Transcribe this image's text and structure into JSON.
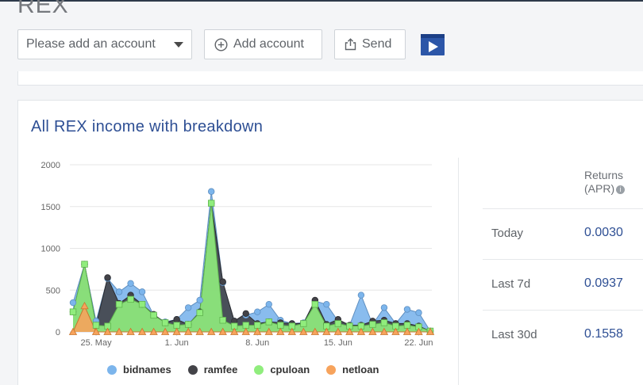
{
  "app": {
    "title": "REX"
  },
  "toolbar": {
    "account_placeholder": "Please add an account",
    "add_account_label": "Add account",
    "send_label": "Send"
  },
  "card": {
    "title": "All REX income with breakdown",
    "returns_header_line1": "Returns",
    "returns_header_line2": "(APR)",
    "returns": [
      {
        "label": "Today",
        "value": "0.0030"
      },
      {
        "label": "Last 7d",
        "value": "0.0937"
      },
      {
        "label": "Last 30d",
        "value": "0.1558"
      }
    ]
  },
  "colors": {
    "bidnames": "#7cb5ec",
    "ramfee": "#434348",
    "cpuloan": "#90ed7d",
    "netloan": "#f7a35c",
    "title": "#2e4f94"
  },
  "icons": {
    "add": "plus-circle-icon",
    "send": "share-upload-icon",
    "video": "play-video-icon",
    "info": "info-icon"
  },
  "chart_data": {
    "type": "area",
    "x": [
      "23. May",
      "24. May",
      "25. May",
      "26. May",
      "27. May",
      "28. May",
      "29. May",
      "30. May",
      "31. May",
      "1. Jun",
      "2. Jun",
      "3. Jun",
      "4. Jun",
      "5. Jun",
      "6. Jun",
      "7. Jun",
      "8. Jun",
      "9. Jun",
      "10. Jun",
      "11. Jun",
      "12. Jun",
      "13. Jun",
      "14. Jun",
      "15. Jun",
      "16. Jun",
      "17. Jun",
      "18. Jun",
      "19. Jun",
      "20. Jun",
      "21. Jun",
      "22. Jun",
      "23. Jun"
    ],
    "xticks": [
      "25. May",
      "1. Jun",
      "8. Jun",
      "15. Jun",
      "22. Jun"
    ],
    "yticks": [
      "0",
      "500",
      "1000",
      "1500",
      "2000"
    ],
    "ylim": [
      0,
      2000
    ],
    "stacked": false,
    "series": [
      {
        "name": "bidnames",
        "values": [
          350,
          810,
          130,
          640,
          480,
          580,
          480,
          200,
          120,
          150,
          290,
          380,
          1680,
          590,
          130,
          200,
          240,
          330,
          140,
          100,
          110,
          370,
          330,
          130,
          80,
          440,
          90,
          290,
          100,
          270,
          230,
          10
        ]
      },
      {
        "name": "ramfee",
        "values": [
          240,
          810,
          80,
          650,
          340,
          440,
          330,
          210,
          110,
          150,
          90,
          240,
          1540,
          600,
          130,
          220,
          100,
          120,
          110,
          100,
          100,
          380,
          90,
          150,
          80,
          80,
          130,
          140,
          100,
          100,
          70,
          10
        ]
      },
      {
        "name": "cpuloan",
        "values": [
          240,
          810,
          80,
          70,
          330,
          390,
          330,
          200,
          110,
          80,
          90,
          230,
          1540,
          140,
          70,
          80,
          80,
          120,
          80,
          70,
          100,
          330,
          70,
          100,
          70,
          70,
          90,
          110,
          70,
          80,
          60,
          10
        ]
      },
      {
        "name": "netloan",
        "values": [
          0,
          310,
          0,
          0,
          0,
          0,
          0,
          0,
          0,
          0,
          0,
          0,
          0,
          0,
          0,
          0,
          0,
          0,
          0,
          0,
          0,
          0,
          0,
          0,
          0,
          0,
          0,
          0,
          0,
          0,
          0,
          0
        ]
      }
    ],
    "legend": "bottom",
    "grid": true
  }
}
